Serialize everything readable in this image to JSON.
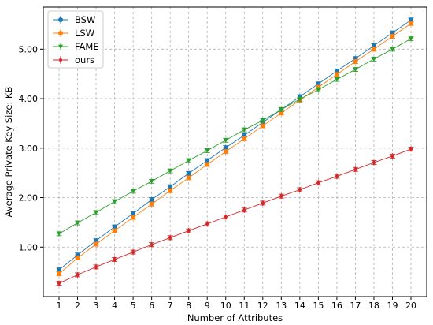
{
  "chart_data": {
    "type": "line",
    "title": "",
    "xlabel": "Number of Attributes",
    "ylabel": "Average Private Key Size: KB",
    "x": [
      1,
      2,
      3,
      4,
      5,
      6,
      7,
      8,
      9,
      10,
      11,
      12,
      13,
      14,
      15,
      16,
      17,
      18,
      19,
      20
    ],
    "x_ticks": [
      "1",
      "2",
      "3",
      "4",
      "5",
      "6",
      "7",
      "8",
      "9",
      "10",
      "11",
      "12",
      "13",
      "14",
      "15",
      "16",
      "17",
      "18",
      "19",
      "20"
    ],
    "y_ticks": [
      "1.00",
      "2.00",
      "3.00",
      "4.00",
      "5.00"
    ],
    "xlim": [
      0.15,
      20.85
    ],
    "ylim": [
      0.0,
      5.85
    ],
    "grid": true,
    "legend_position": "top-left",
    "series": [
      {
        "name": "BSW",
        "color": "#1f77b4",
        "marker": "circle",
        "values": [
          0.54,
          0.84,
          1.13,
          1.41,
          1.68,
          1.96,
          2.22,
          2.49,
          2.75,
          3.01,
          3.26,
          3.52,
          3.78,
          4.04,
          4.3,
          4.56,
          4.81,
          5.07,
          5.33,
          5.59
        ]
      },
      {
        "name": "LSW",
        "color": "#ff7f0e",
        "marker": "circle",
        "values": [
          0.46,
          0.78,
          1.06,
          1.33,
          1.6,
          1.87,
          2.14,
          2.4,
          2.67,
          2.93,
          3.19,
          3.45,
          3.71,
          3.97,
          4.23,
          4.49,
          4.75,
          5.0,
          5.26,
          5.52
        ]
      },
      {
        "name": "FAME",
        "color": "#2ca02c",
        "marker": "triangle-down",
        "values": [
          1.27,
          1.49,
          1.7,
          1.92,
          2.13,
          2.33,
          2.54,
          2.75,
          2.95,
          3.16,
          3.37,
          3.56,
          3.78,
          3.99,
          4.18,
          4.39,
          4.59,
          4.8,
          5.0,
          5.21
        ]
      },
      {
        "name": "ours",
        "color": "#d62728",
        "marker": "diamond",
        "values": [
          0.27,
          0.44,
          0.6,
          0.75,
          0.9,
          1.05,
          1.19,
          1.33,
          1.47,
          1.61,
          1.75,
          1.89,
          2.03,
          2.16,
          2.3,
          2.43,
          2.57,
          2.71,
          2.84,
          2.98
        ]
      }
    ]
  }
}
